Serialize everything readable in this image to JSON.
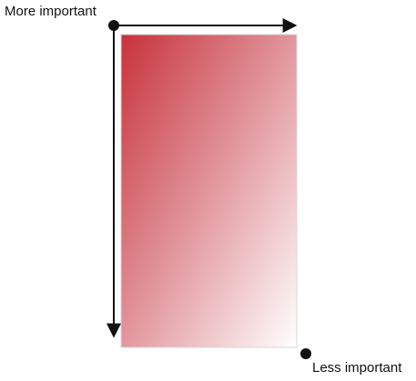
{
  "labels": {
    "top_left": "More important",
    "bottom_right": "Less important"
  },
  "colors": {
    "gradient_start": "#c8323a",
    "gradient_end": "#ffffff",
    "axis": "#111111",
    "panel_border": "#d7d7d7"
  }
}
